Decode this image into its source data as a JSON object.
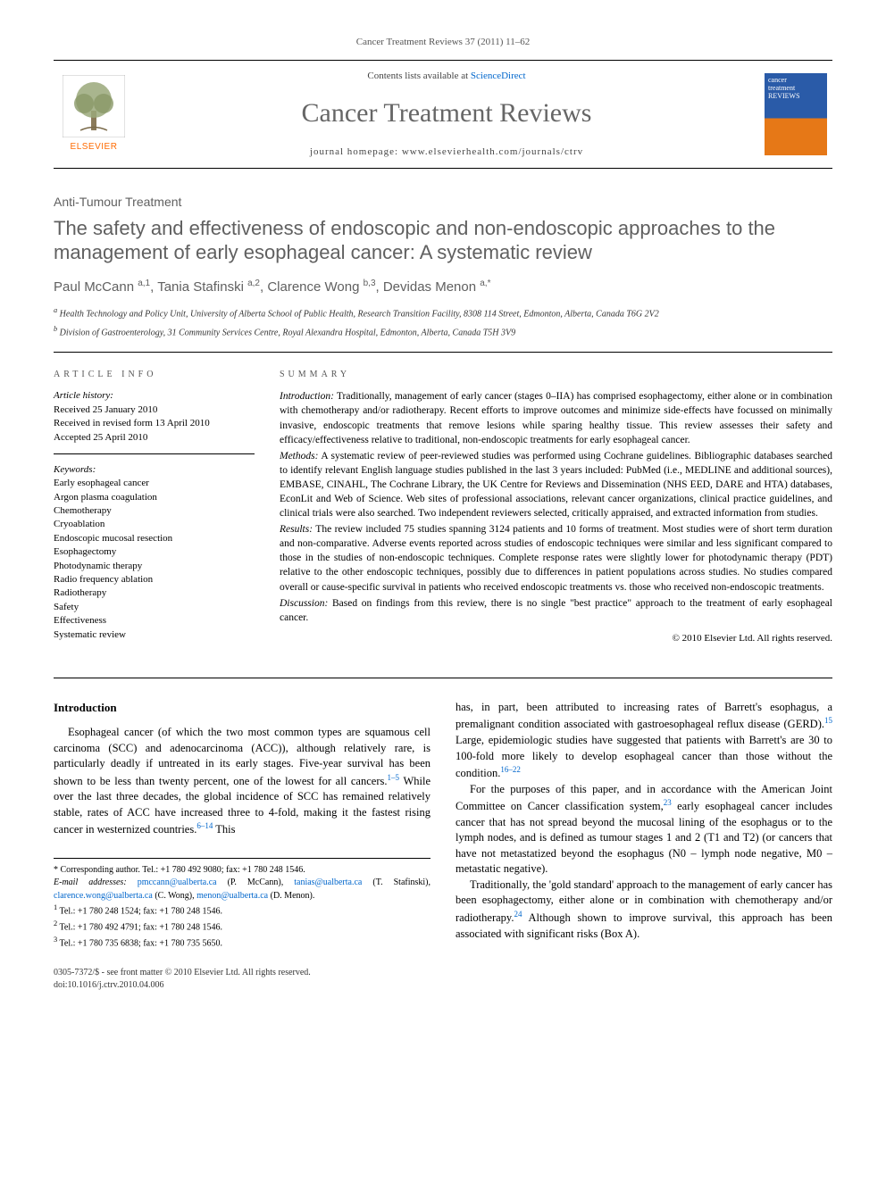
{
  "running_header": "Cancer Treatment Reviews 37 (2011) 11–62",
  "masthead": {
    "contents_prefix": "Contents lists available at ",
    "contents_link": "ScienceDirect",
    "journal_title": "Cancer Treatment Reviews",
    "homepage_prefix": "journal homepage: ",
    "homepage_url": "www.elsevierhealth.com/journals/ctrv",
    "publisher_name": "ELSEVIER",
    "cover_text_top": "cancer",
    "cover_text_mid": "treatment",
    "cover_text_bot": "REVIEWS"
  },
  "article": {
    "type": "Anti-Tumour Treatment",
    "title": "The safety and effectiveness of endoscopic and non-endoscopic approaches to the management of early esophageal cancer: A systematic review",
    "authors_html": "Paul McCann <sup>a,1</sup>, Tania Stafinski <sup>a,2</sup>, Clarence Wong <sup>b,3</sup>, Devidas Menon <sup>a,*</sup>",
    "affiliations": {
      "a": "Health Technology and Policy Unit, University of Alberta School of Public Health, Research Transition Facility, 8308 114 Street, Edmonton, Alberta, Canada T6G 2V2",
      "b": "Division of Gastroenterology, 31 Community Services Centre, Royal Alexandra Hospital, Edmonton, Alberta, Canada T5H 3V9"
    }
  },
  "info": {
    "heading": "ARTICLE INFO",
    "history_label": "Article history:",
    "history": [
      "Received 25 January 2010",
      "Received in revised form 13 April 2010",
      "Accepted 25 April 2010"
    ],
    "keywords_label": "Keywords:",
    "keywords": [
      "Early esophageal cancer",
      "Argon plasma coagulation",
      "Chemotherapy",
      "Cryoablation",
      "Endoscopic mucosal resection",
      "Esophagectomy",
      "Photodynamic therapy",
      "Radio frequency ablation",
      "Radiotherapy",
      "Safety",
      "Effectiveness",
      "Systematic review"
    ]
  },
  "summary": {
    "heading": "SUMMARY",
    "paragraphs": [
      {
        "label": "Introduction:",
        "text": "Traditionally, management of early cancer (stages 0–IIA) has comprised esophagectomy, either alone or in combination with chemotherapy and/or radiotherapy. Recent efforts to improve outcomes and minimize side-effects have focussed on minimally invasive, endoscopic treatments that remove lesions while sparing healthy tissue. This review assesses their safety and efficacy/effectiveness relative to traditional, non-endoscopic treatments for early esophageal cancer."
      },
      {
        "label": "Methods:",
        "text": "A systematic review of peer-reviewed studies was performed using Cochrane guidelines. Bibliographic databases searched to identify relevant English language studies published in the last 3 years included: PubMed (i.e., MEDLINE and additional sources), EMBASE, CINAHL, The Cochrane Library, the UK Centre for Reviews and Dissemination (NHS EED, DARE and HTA) databases, EconLit and Web of Science. Web sites of professional associations, relevant cancer organizations, clinical practice guidelines, and clinical trials were also searched. Two independent reviewers selected, critically appraised, and extracted information from studies."
      },
      {
        "label": "Results:",
        "text": "The review included 75 studies spanning 3124 patients and 10 forms of treatment. Most studies were of short term duration and non-comparative. Adverse events reported across studies of endoscopic techniques were similar and less significant compared to those in the studies of non-endoscopic techniques. Complete response rates were slightly lower for photodynamic therapy (PDT) relative to the other endoscopic techniques, possibly due to differences in patient populations across studies. No studies compared overall or cause-specific survival in patients who received endoscopic treatments vs. those who received non-endoscopic treatments."
      },
      {
        "label": "Discussion:",
        "text": "Based on findings from this review, there is no single \"best practice\" approach to the treatment of early esophageal cancer."
      }
    ],
    "copyright": "© 2010 Elsevier Ltd. All rights reserved."
  },
  "body": {
    "intro_heading": "Introduction",
    "left_paragraphs": [
      "Esophageal cancer (of which the two most common types are squamous cell carcinoma (SCC) and adenocarcinoma (ACC)), although relatively rare, is particularly deadly if untreated in its early stages. Five-year survival has been shown to be less than twenty percent, one of the lowest for all cancers.<span class=\"supref\">1–5</span> While over the last three decades, the global incidence of SCC has remained relatively stable, rates of ACC have increased three to 4-fold, making it the fastest rising cancer in westernized countries.<span class=\"supref\">6–14</span> This"
    ],
    "right_paragraphs": [
      "has, in part, been attributed to increasing rates of Barrett's esophagus, a premalignant condition associated with gastroesophageal reflux disease (GERD).<span class=\"supref\">15</span> Large, epidemiologic studies have suggested that patients with Barrett's are 30 to 100-fold more likely to develop esophageal cancer than those without the condition.<span class=\"supref\">16–22</span>",
      "For the purposes of this paper, and in accordance with the American Joint Committee on Cancer classification system,<span class=\"supref\">23</span> early esophageal cancer includes cancer that has not spread beyond the mucosal lining of the esophagus or to the lymph nodes, and is defined as tumour stages 1 and 2 (T1 and T2) (or cancers that have not metastatized beyond the esophagus (N0 – lymph node negative, M0 – metastatic negative).",
      "Traditionally, the 'gold standard' approach to the management of early cancer has been esophagectomy, either alone or in combination with chemotherapy and/or radiotherapy.<span class=\"supref\">24</span> Although shown to improve survival, this approach has been associated with significant risks (Box A)."
    ]
  },
  "footnotes": {
    "corresponding": "* Corresponding author. Tel.: +1 780 492 9080; fax: +1 780 248 1546.",
    "email_label": "E-mail addresses:",
    "emails": [
      {
        "addr": "pmccann@ualberta.ca",
        "who": "(P. McCann)"
      },
      {
        "addr": "tanias@ualberta.ca",
        "who": "(T. Stafinski)"
      },
      {
        "addr": "clarence.wong@ualberta.ca",
        "who": "(C. Wong)"
      },
      {
        "addr": "menon@ualberta.ca",
        "who": "(D. Menon)"
      }
    ],
    "tels": [
      "Tel.: +1 780 248 1524; fax: +1 780 248 1546.",
      "Tel.: +1 780 492 4791; fax: +1 780 248 1546.",
      "Tel.: +1 780 735 6838; fax: +1 780 735 5650."
    ]
  },
  "footer": {
    "line1": "0305-7372/$ - see front matter © 2010 Elsevier Ltd. All rights reserved.",
    "line2": "doi:10.1016/j.ctrv.2010.04.006"
  },
  "colors": {
    "link": "#0066cc",
    "elsevier_orange": "#ff6a00",
    "muted_text": "#606060"
  }
}
